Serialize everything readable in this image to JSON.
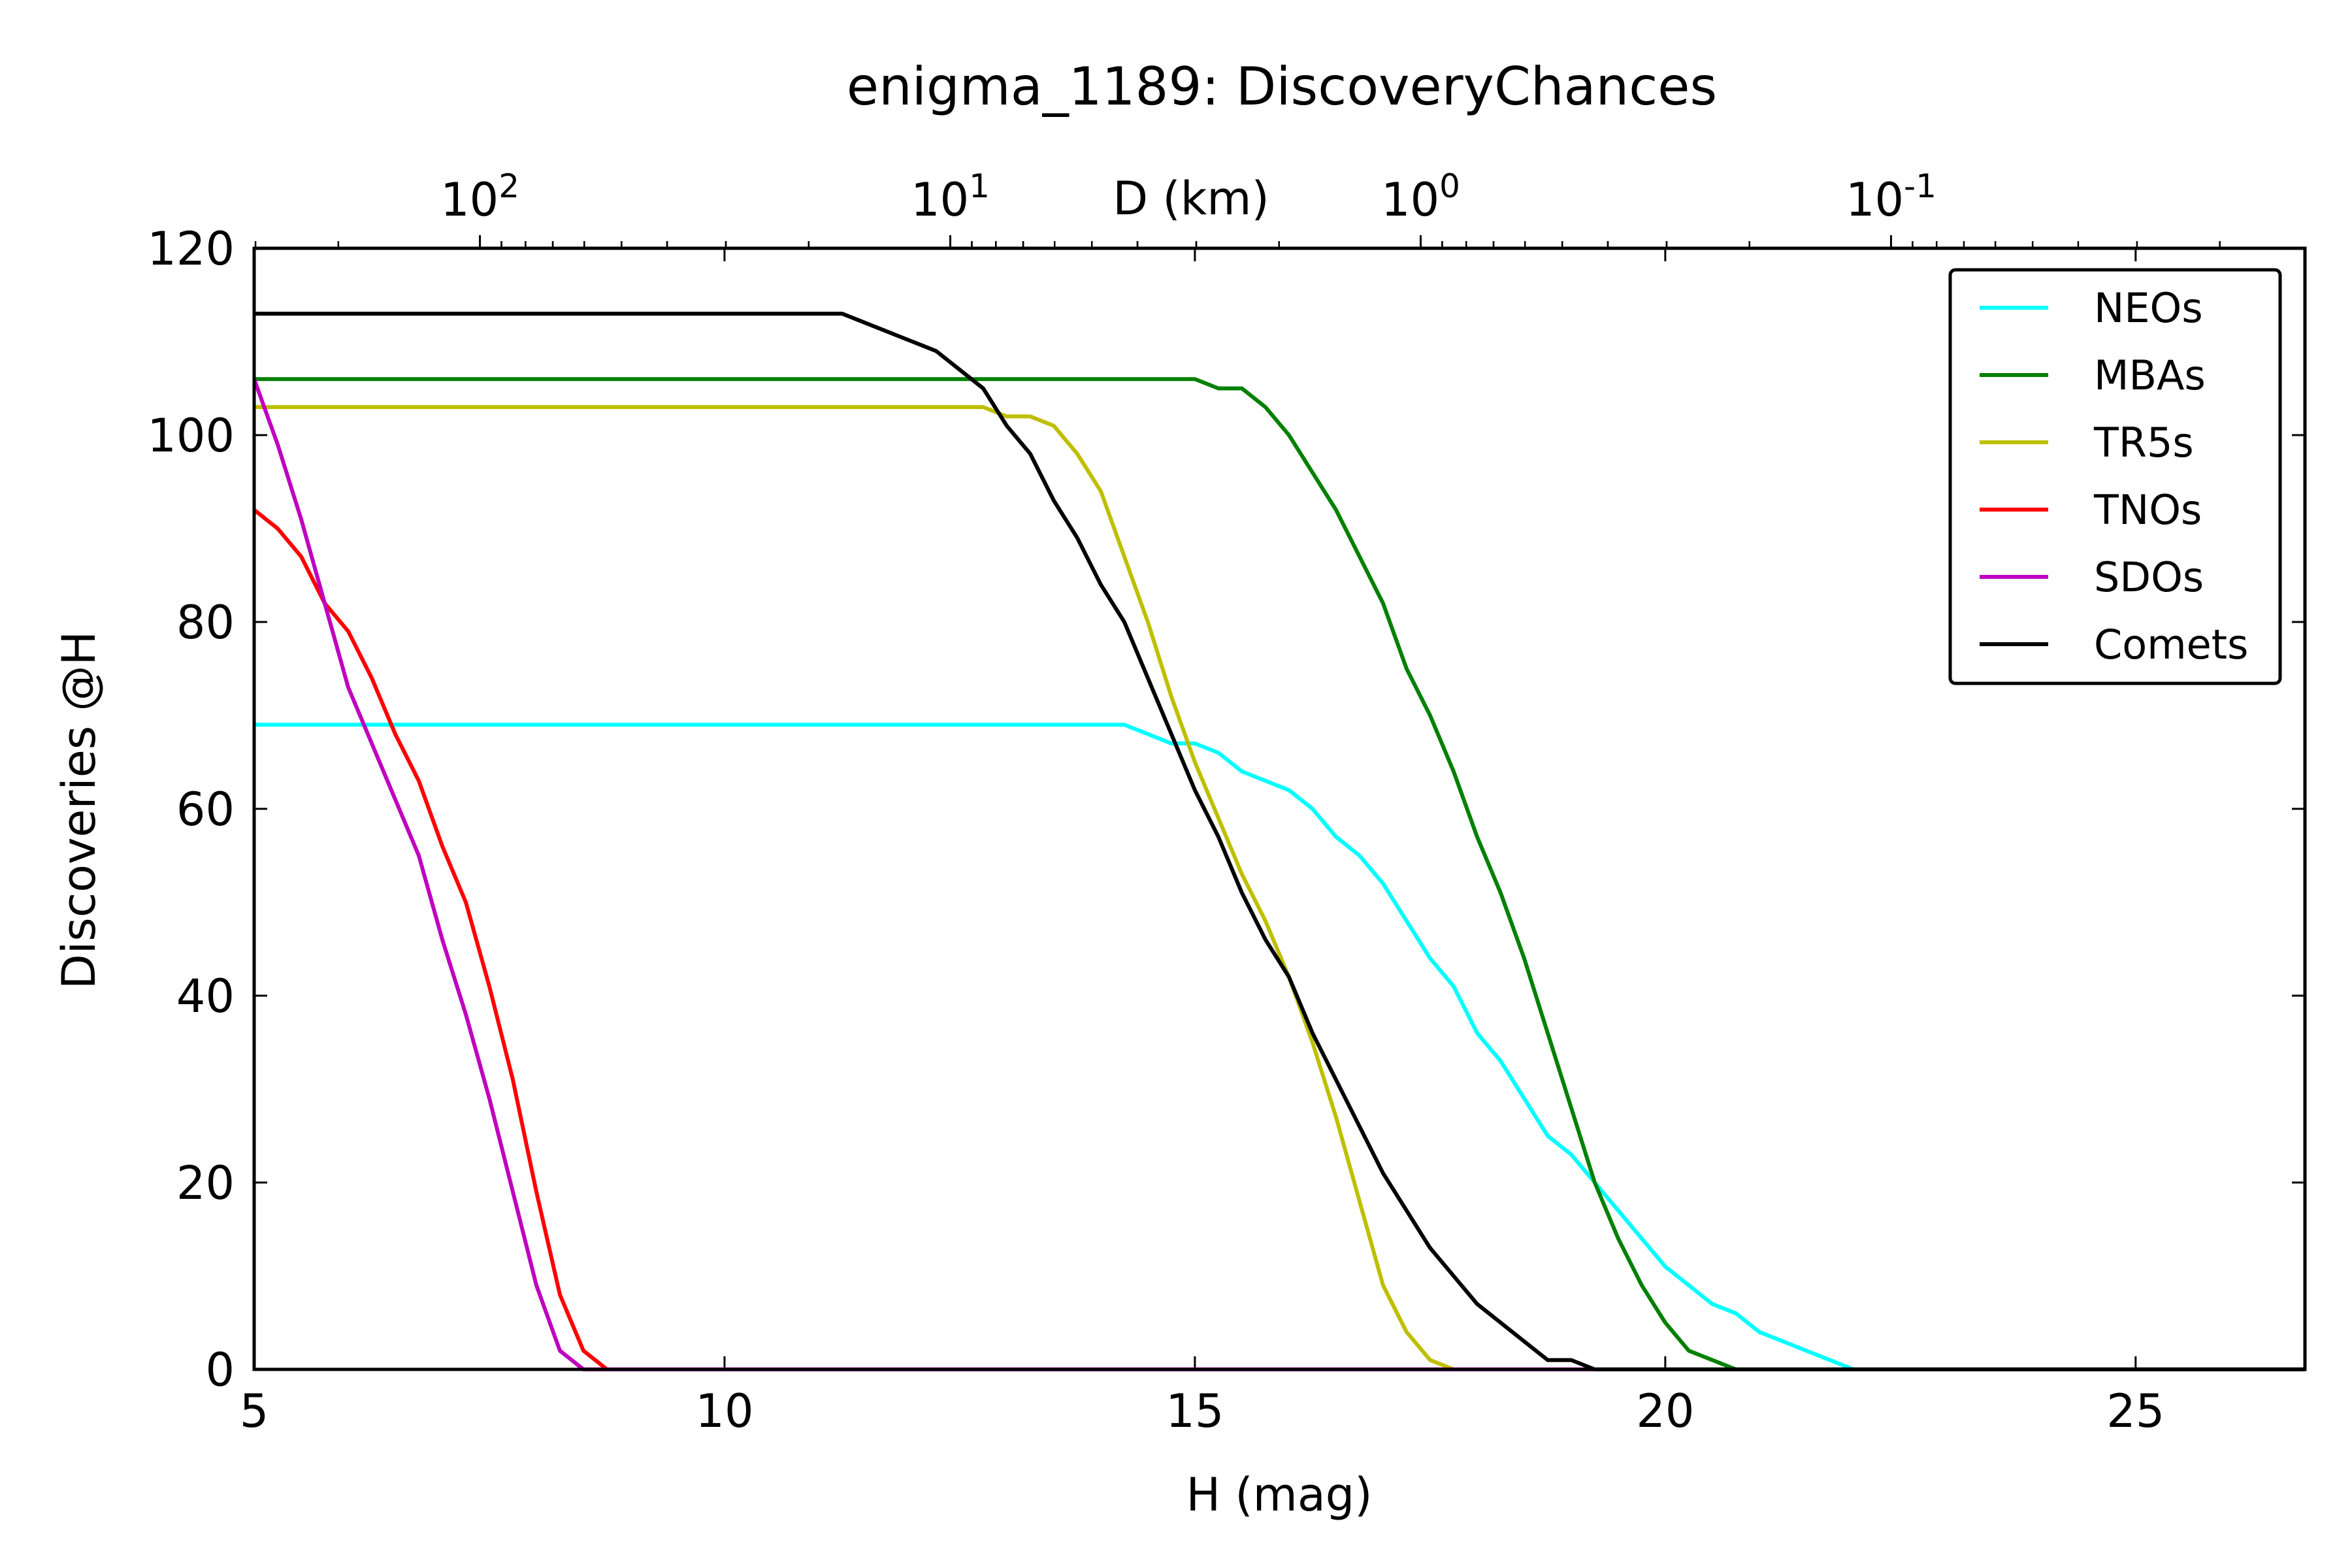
{
  "chart_data": {
    "type": "line",
    "title": "enigma_1189: DiscoveryChances",
    "xlabel": "H (mag)",
    "ylabel": "Discoveries @H",
    "top_xlabel": "D (km)",
    "xlim": [
      5,
      26.8
    ],
    "ylim": [
      0,
      120
    ],
    "x_ticks": [
      5,
      10,
      15,
      20,
      25
    ],
    "y_ticks": [
      0,
      20,
      40,
      60,
      80,
      100,
      120
    ],
    "top_ticks": [
      {
        "base": "10",
        "exp": "2",
        "h": 7.4
      },
      {
        "base": "10",
        "exp": "1",
        "h": 12.4
      },
      {
        "base": "10",
        "exp": "0",
        "h": 17.4
      },
      {
        "base": "10",
        "exp": "-1",
        "h": 22.4
      }
    ],
    "grid": false,
    "legend_position": "top-right",
    "series": [
      {
        "name": "NEOs",
        "color": "#00ffff",
        "points": [
          [
            5,
            69
          ],
          [
            14.25,
            69
          ],
          [
            14.5,
            68
          ],
          [
            14.75,
            67
          ],
          [
            15,
            67
          ],
          [
            15.25,
            66
          ],
          [
            15.5,
            64
          ],
          [
            15.75,
            63
          ],
          [
            16,
            62
          ],
          [
            16.25,
            60
          ],
          [
            16.5,
            57
          ],
          [
            16.75,
            55
          ],
          [
            17,
            52
          ],
          [
            17.25,
            48
          ],
          [
            17.5,
            44
          ],
          [
            17.75,
            41
          ],
          [
            18,
            36
          ],
          [
            18.25,
            33
          ],
          [
            18.5,
            29
          ],
          [
            18.75,
            25
          ],
          [
            19,
            23
          ],
          [
            19.25,
            20
          ],
          [
            19.5,
            17
          ],
          [
            19.75,
            14
          ],
          [
            20,
            11
          ],
          [
            20.25,
            9
          ],
          [
            20.5,
            7
          ],
          [
            20.75,
            6
          ],
          [
            21,
            4
          ],
          [
            21.25,
            3
          ],
          [
            21.5,
            2
          ],
          [
            21.75,
            1
          ],
          [
            22,
            0
          ],
          [
            26.8,
            0
          ]
        ]
      },
      {
        "name": "MBAs",
        "color": "#008000",
        "points": [
          [
            5,
            106
          ],
          [
            15,
            106
          ],
          [
            15.25,
            105
          ],
          [
            15.5,
            105
          ],
          [
            15.75,
            103
          ],
          [
            16,
            100
          ],
          [
            16.25,
            96
          ],
          [
            16.5,
            92
          ],
          [
            16.75,
            87
          ],
          [
            17,
            82
          ],
          [
            17.25,
            75
          ],
          [
            17.5,
            70
          ],
          [
            17.75,
            64
          ],
          [
            18,
            57
          ],
          [
            18.25,
            51
          ],
          [
            18.5,
            44
          ],
          [
            18.75,
            36
          ],
          [
            19,
            28
          ],
          [
            19.25,
            20
          ],
          [
            19.5,
            14
          ],
          [
            19.75,
            9
          ],
          [
            20,
            5
          ],
          [
            20.25,
            2
          ],
          [
            20.5,
            1
          ],
          [
            20.75,
            0
          ],
          [
            26.8,
            0
          ]
        ]
      },
      {
        "name": "TR5s",
        "color": "#bfbf00",
        "points": [
          [
            5,
            103
          ],
          [
            12.75,
            103
          ],
          [
            13,
            102
          ],
          [
            13.25,
            102
          ],
          [
            13.5,
            101
          ],
          [
            13.75,
            98
          ],
          [
            14,
            94
          ],
          [
            14.25,
            87
          ],
          [
            14.5,
            80
          ],
          [
            14.75,
            72
          ],
          [
            15,
            65
          ],
          [
            15.25,
            59
          ],
          [
            15.5,
            53
          ],
          [
            15.75,
            48
          ],
          [
            16,
            42
          ],
          [
            16.25,
            35
          ],
          [
            16.5,
            27
          ],
          [
            16.75,
            18
          ],
          [
            17,
            9
          ],
          [
            17.25,
            4
          ],
          [
            17.5,
            1
          ],
          [
            17.75,
            0
          ],
          [
            26.8,
            0
          ]
        ]
      },
      {
        "name": "TNOs",
        "color": "#ff0000",
        "points": [
          [
            5,
            92
          ],
          [
            5.25,
            90
          ],
          [
            5.5,
            87
          ],
          [
            5.75,
            82
          ],
          [
            6,
            79
          ],
          [
            6.25,
            74
          ],
          [
            6.5,
            68
          ],
          [
            6.75,
            63
          ],
          [
            7,
            56
          ],
          [
            7.25,
            50
          ],
          [
            7.5,
            41
          ],
          [
            7.75,
            31
          ],
          [
            8,
            19
          ],
          [
            8.25,
            8
          ],
          [
            8.5,
            2
          ],
          [
            8.75,
            0
          ],
          [
            26.8,
            0
          ]
        ]
      },
      {
        "name": "SDOs",
        "color": "#bf00bf",
        "points": [
          [
            5,
            106
          ],
          [
            5.25,
            99
          ],
          [
            5.5,
            91
          ],
          [
            5.75,
            82
          ],
          [
            6,
            73
          ],
          [
            6.25,
            67
          ],
          [
            6.5,
            61
          ],
          [
            6.75,
            55
          ],
          [
            7,
            46
          ],
          [
            7.25,
            38
          ],
          [
            7.5,
            29
          ],
          [
            7.75,
            19
          ],
          [
            8,
            9
          ],
          [
            8.25,
            2
          ],
          [
            8.5,
            0
          ],
          [
            26.8,
            0
          ]
        ]
      },
      {
        "name": "Comets",
        "color": "#000000",
        "points": [
          [
            5,
            113
          ],
          [
            11.25,
            113
          ],
          [
            11.75,
            111
          ],
          [
            12.25,
            109
          ],
          [
            12.5,
            107
          ],
          [
            12.75,
            105
          ],
          [
            13,
            101
          ],
          [
            13.25,
            98
          ],
          [
            13.5,
            93
          ],
          [
            13.75,
            89
          ],
          [
            14,
            84
          ],
          [
            14.25,
            80
          ],
          [
            14.5,
            74
          ],
          [
            14.75,
            68
          ],
          [
            15,
            62
          ],
          [
            15.25,
            57
          ],
          [
            15.5,
            51
          ],
          [
            15.75,
            46
          ],
          [
            16,
            42
          ],
          [
            16.25,
            36
          ],
          [
            16.5,
            31
          ],
          [
            16.75,
            26
          ],
          [
            17,
            21
          ],
          [
            17.25,
            17
          ],
          [
            17.5,
            13
          ],
          [
            17.75,
            10
          ],
          [
            18,
            7
          ],
          [
            18.5,
            3
          ],
          [
            18.75,
            1
          ],
          [
            19,
            1
          ],
          [
            19.25,
            0
          ],
          [
            26.8,
            0
          ]
        ]
      }
    ]
  }
}
